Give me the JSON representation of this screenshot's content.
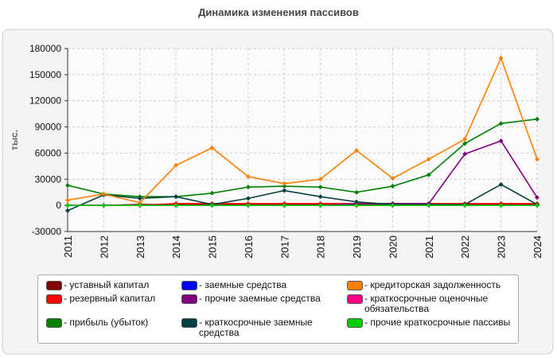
{
  "chart_data": {
    "type": "line",
    "title": "Динамика изменения пассивов",
    "y_label": "тыс.",
    "categories": [
      "2011",
      "2012",
      "2013",
      "2014",
      "2015",
      "2016",
      "2017",
      "2018",
      "2019",
      "2020",
      "2021",
      "2022",
      "2023",
      "2024"
    ],
    "ylim": [
      -30000,
      180000
    ],
    "yticks": [
      -30000,
      0,
      30000,
      60000,
      90000,
      120000,
      150000,
      180000
    ],
    "grid": true,
    "series": [
      {
        "name": "уставный капитал",
        "color": "#800000",
        "values": [
          0,
          0,
          1000,
          1000,
          1000,
          1000,
          1000,
          1000,
          1000,
          1000,
          1000,
          1000,
          1000,
          1000
        ]
      },
      {
        "name": "резервный капитал",
        "color": "#ff0000",
        "values": [
          0,
          0,
          0,
          2000,
          2000,
          2000,
          2000,
          2000,
          2000,
          2000,
          2000,
          2000,
          2000,
          2000
        ]
      },
      {
        "name": "прибыль (убыток)",
        "color": "#008000",
        "values": [
          23000,
          13000,
          10000,
          10000,
          14000,
          21000,
          22000,
          21000,
          15000,
          22000,
          35000,
          71000,
          94000,
          99000
        ]
      },
      {
        "name": "заемные средства",
        "color": "#0000ff",
        "values": [
          0,
          0,
          0,
          0,
          0,
          0,
          0,
          0,
          0,
          0,
          0,
          0,
          0,
          0
        ]
      },
      {
        "name": "прочие заемные средства",
        "color": "#800080",
        "values": [
          0,
          0,
          0,
          0,
          0,
          0,
          0,
          0,
          2000,
          2000,
          2000,
          59000,
          74000,
          9000
        ]
      },
      {
        "name": "краткосрочные заемные средства",
        "color": "#003f3f",
        "values": [
          -6000,
          12000,
          8000,
          10000,
          1000,
          8000,
          17000,
          10000,
          4000,
          1000,
          1000,
          1000,
          24000,
          1000
        ]
      },
      {
        "name": "кредиторская задолженность",
        "color": "#ff8000",
        "values": [
          6000,
          13000,
          3000,
          46000,
          66000,
          33000,
          25000,
          30000,
          63000,
          31000,
          53000,
          76000,
          169000,
          53000
        ]
      },
      {
        "name": "краткосрочные оценочные обязательства",
        "color": "#ff0080",
        "values": [
          0,
          0,
          0,
          0,
          0,
          0,
          0,
          0,
          0,
          0,
          0,
          0,
          0,
          0
        ]
      },
      {
        "name": "прочие краткосрочные пассивы",
        "color": "#00cc00",
        "values": [
          0,
          0,
          0,
          0,
          0,
          0,
          0,
          0,
          0,
          0,
          0,
          0,
          0,
          0
        ]
      }
    ]
  }
}
